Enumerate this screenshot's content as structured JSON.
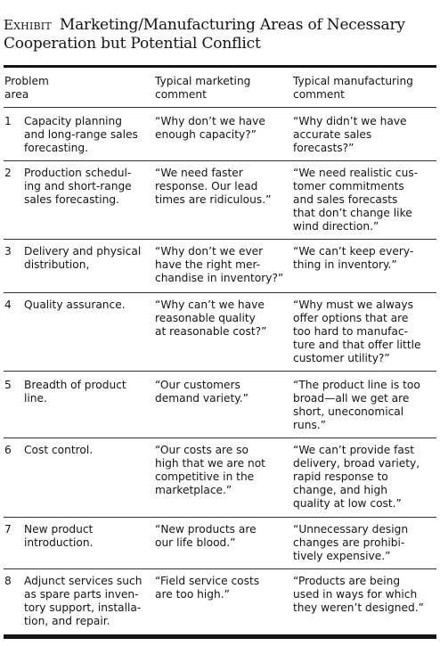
{
  "exhibit": {
    "label": "Exhibit",
    "title_line1": "Marketing/Manufacturing Areas of Necessary",
    "title_line2": "Cooperation but Potential Conflict"
  },
  "table": {
    "headers": {
      "area": "Problem\narea",
      "marketing": "Typical marketing\ncomment",
      "manufacturing": "Typical manufacturing\ncomment"
    },
    "rows": [
      {
        "num": "1",
        "area": "Capacity planning\nand long-range sales\nforecasting.",
        "marketing": "“Why don’t we have\nenough capacity?”",
        "manufacturing": "“Why didn’t we have\naccurate sales\nforecasts?”"
      },
      {
        "num": "2",
        "area": "Production schedul-\ning and short-range\nsales forecasting.",
        "marketing": "“We need faster\nresponse. Our lead\ntimes are ridiculous.”",
        "manufacturing": "“We need realistic cus-\ntomer commitments\nand sales forecasts\nthat don’t change like\nwind direction.”"
      },
      {
        "num": "3",
        "area": "Delivery and physical\ndistribution,",
        "marketing": "“Why don’t we ever\nhave the right mer-\nchandise in inventory?”",
        "manufacturing": "“We can’t keep every-\nthing in inventory.”"
      },
      {
        "num": "4",
        "area": "Quality assurance.",
        "marketing": "“Why can’t we have\nreasonable quality\nat reasonable cost?”",
        "manufacturing": "“Why must we always\noffer options that are\ntoo hard to manufac-\nture and that offer little\ncustomer utility?”"
      },
      {
        "num": "5",
        "area": "Breadth of product\nline.",
        "marketing": "“Our customers\ndemand variety.”",
        "manufacturing": "“The product line is too\nbroad—all we get are\nshort, uneconomical\nruns.”"
      },
      {
        "num": "6",
        "area": "Cost control.",
        "marketing": "“Our costs are so\nhigh that we are not\ncompetitive in the\nmarketplace.”",
        "manufacturing": "“We can’t provide fast\ndelivery, broad variety,\nrapid response to\nchange, and high\nquality at low cost.”"
      },
      {
        "num": "7",
        "area": "New product\nintroduction.",
        "marketing": "“New products are\nour life blood.”",
        "manufacturing": "“Unnecessary design\nchanges are prohibi-\ntively expensive.”"
      },
      {
        "num": "8",
        "area": "Adjunct services such\nas spare parts inven-\ntory support, installa-\ntion, and repair.",
        "marketing": "“Field service costs\nare too high.”",
        "manufacturing": "“Products are being\nused in ways for which\nthey weren’t designed.”"
      }
    ]
  }
}
